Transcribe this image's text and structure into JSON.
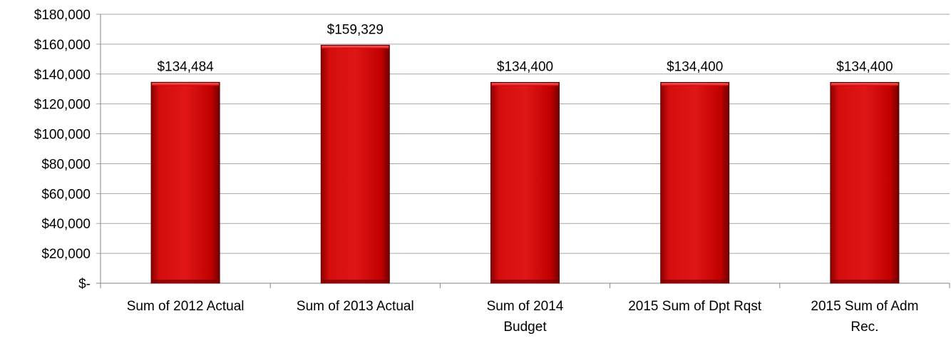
{
  "chart_data": {
    "type": "bar",
    "categories": [
      [
        "Sum of 2012 Actual"
      ],
      [
        "Sum of 2013 Actual"
      ],
      [
        "Sum of 2014",
        "Budget"
      ],
      [
        "2015 Sum of Dpt Rqst"
      ],
      [
        "2015 Sum of Adm",
        "Rec."
      ]
    ],
    "values": [
      134484,
      159329,
      134400,
      134400,
      134400
    ],
    "data_labels": [
      "$134,484",
      "$159,329",
      "$134,400",
      "$134,400",
      "$134,400"
    ],
    "ylim": [
      0,
      180000
    ],
    "yticks": [
      0,
      20000,
      40000,
      60000,
      80000,
      100000,
      120000,
      140000,
      160000,
      180000
    ],
    "ytick_labels": [
      "$-",
      "$20,000",
      "$40,000",
      "$60,000",
      "$80,000",
      "$100,000",
      "$120,000",
      "$140,000",
      "$160,000",
      "$180,000"
    ],
    "grid": true,
    "legend": "none",
    "colors": {
      "bar": "#cc0000",
      "bar_light": "#ee2a2a",
      "bar_dark": "#7a0000",
      "grid": "#a6a6a6",
      "axis": "#868686"
    }
  }
}
